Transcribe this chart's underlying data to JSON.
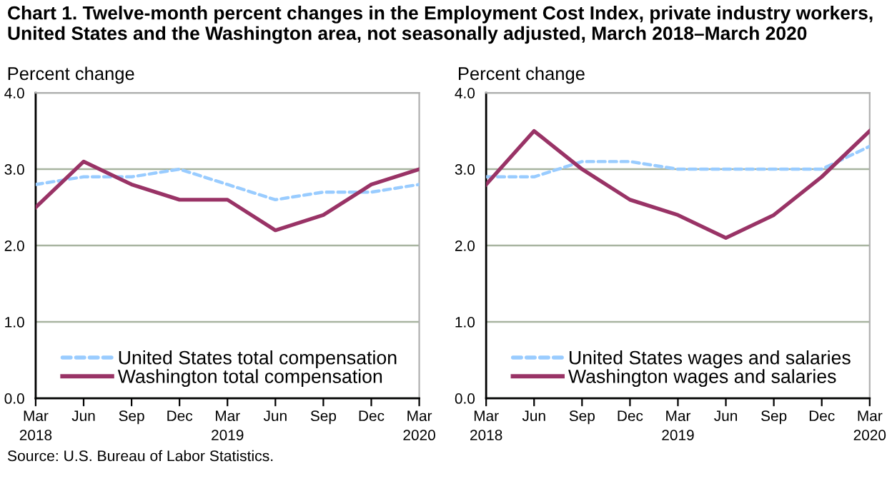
{
  "chart_data": [
    {
      "type": "line",
      "title": "Chart 1. Twelve-month percent changes in the Employment Cost Index, private industry workers, United States and the Washington area, not seasonally adjusted, March 2018–March 2020",
      "ylabel": "Percent change",
      "categories": [
        "Mar\n2018",
        "Jun",
        "Sep",
        "Dec",
        "Mar\n2019",
        "Jun",
        "Sep",
        "Dec",
        "Mar\n2020"
      ],
      "ylim": [
        0,
        4
      ],
      "yticks": [
        {
          "value": 0,
          "label": "0.0"
        },
        {
          "value": 1,
          "label": "1.0"
        },
        {
          "value": 2,
          "label": "2.0"
        },
        {
          "value": 3,
          "label": "3.0"
        },
        {
          "value": 4,
          "label": "4.0"
        }
      ],
      "grid": "y",
      "legend": "bottom left",
      "series": [
        {
          "name": "United States total compensation",
          "color": "#99ccff",
          "line_style": "dashed",
          "values": [
            2.8,
            2.9,
            2.9,
            3.0,
            2.8,
            2.6,
            2.7,
            2.7,
            2.8
          ]
        },
        {
          "name": "Washington total compensation",
          "color": "#993366",
          "line_style": "solid",
          "values": [
            2.5,
            3.1,
            2.8,
            2.6,
            2.6,
            2.2,
            2.4,
            2.8,
            3.0
          ]
        }
      ],
      "annotations": [
        "Source: U.S. Bureau of Labor Statistics."
      ]
    },
    {
      "type": "line",
      "ylabel": "Percent change",
      "categories": [
        "Mar\n2018",
        "Jun",
        "Sep",
        "Dec",
        "Mar\n2019",
        "Jun",
        "Sep",
        "Dec",
        "Mar\n2020"
      ],
      "ylim": [
        0,
        4
      ],
      "yticks": [
        {
          "value": 0,
          "label": "0.0"
        },
        {
          "value": 1,
          "label": "1.0"
        },
        {
          "value": 2,
          "label": "2.0"
        },
        {
          "value": 3,
          "label": "3.0"
        },
        {
          "value": 4,
          "label": "4.0"
        }
      ],
      "grid": "y",
      "legend": "bottom left",
      "series": [
        {
          "name": "United States wages and salaries",
          "color": "#99ccff",
          "line_style": "dashed",
          "values": [
            2.9,
            2.9,
            3.1,
            3.1,
            3.0,
            3.0,
            3.0,
            3.0,
            3.3
          ]
        },
        {
          "name": "Washington wages and salaries",
          "color": "#993366",
          "line_style": "solid",
          "values": [
            2.8,
            3.5,
            3.0,
            2.6,
            2.4,
            2.1,
            2.4,
            2.9,
            3.5
          ]
        }
      ]
    }
  ]
}
